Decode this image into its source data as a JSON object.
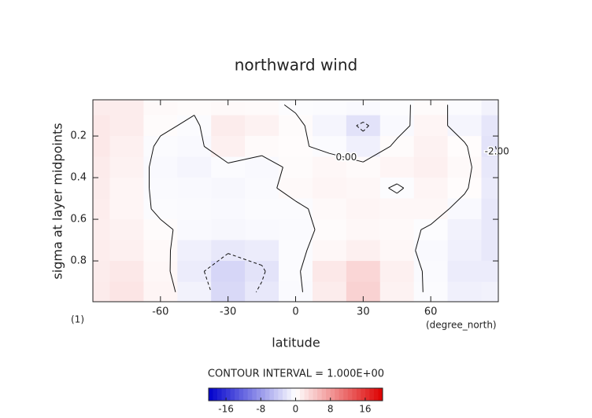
{
  "chart_data": {
    "type": "contour",
    "title": "northward wind",
    "x_label": "latitude",
    "y_label": "sigma at layer midpoints",
    "x_units": "(degree_north)",
    "panel_label": "(1)",
    "contour_note": "CONTOUR INTERVAL = 1.000E+00",
    "x": [
      -90,
      -75,
      -60,
      -45,
      -30,
      -15,
      0,
      15,
      30,
      45,
      60,
      75,
      90
    ],
    "y": [
      0.05,
      0.15,
      0.25,
      0.35,
      0.45,
      0.55,
      0.65,
      0.75,
      0.85,
      0.95
    ],
    "values": [
      [
        1.5,
        1.5,
        0.5,
        0.3,
        0.5,
        0.4,
        -0.2,
        -0.3,
        -0.5,
        -0.2,
        0.3,
        -0.3,
        -1.0
      ],
      [
        1.8,
        1.5,
        0.3,
        -0.3,
        1.5,
        1.0,
        0.3,
        -0.8,
        -2.3,
        -0.5,
        0.8,
        -0.8,
        -2.0
      ],
      [
        1.8,
        1.2,
        -0.3,
        -0.5,
        1.2,
        0.4,
        0.2,
        -0.3,
        -1.2,
        0.3,
        1.0,
        0.2,
        -2.2
      ],
      [
        1.6,
        1.0,
        -0.5,
        -0.8,
        -0.3,
        -0.5,
        0.3,
        0.6,
        0.4,
        0.8,
        1.2,
        0.5,
        -1.8
      ],
      [
        1.5,
        0.8,
        -0.4,
        -0.5,
        -0.6,
        -0.4,
        0.5,
        0.8,
        0.6,
        -0.2,
        0.8,
        0.2,
        -1.6
      ],
      [
        1.4,
        0.8,
        -0.3,
        -0.4,
        -0.5,
        -0.3,
        -0.3,
        0.5,
        0.8,
        0.6,
        0.6,
        -0.5,
        -1.8
      ],
      [
        1.3,
        1.0,
        0.3,
        -0.5,
        -0.6,
        -0.5,
        -0.4,
        0.3,
        0.6,
        0.5,
        -0.2,
        -1.0,
        -1.8
      ],
      [
        1.4,
        1.2,
        0.5,
        -1.2,
        -1.8,
        -1.5,
        -0.3,
        0.6,
        1.2,
        0.6,
        -0.5,
        -1.2,
        -1.8
      ],
      [
        1.5,
        1.8,
        0.6,
        -1.5,
        -3.2,
        -2.2,
        -0.3,
        1.8,
        3.2,
        1.2,
        -0.4,
        -1.5,
        -1.5
      ],
      [
        1.6,
        2.0,
        0.8,
        -1.0,
        -3.0,
        -1.8,
        -0.4,
        1.5,
        3.5,
        1.0,
        -0.3,
        -1.2,
        -1.0
      ]
    ],
    "xlim": [
      -90,
      90
    ],
    "xticks": [
      -60,
      -30,
      0,
      30,
      60
    ],
    "ylim": [
      0.996,
      0.026
    ],
    "yticks": [
      0.2,
      0.4,
      0.6,
      0.8
    ],
    "contour_levels": [
      {
        "value": 0,
        "label": "0.00"
      },
      {
        "value": -2,
        "label": "-2.00"
      }
    ],
    "colorbar": {
      "lim": [
        -20,
        20
      ],
      "ticks": [
        -16,
        -8,
        0,
        8,
        16
      ],
      "colors": [
        "#0000cc",
        "#ffffff",
        "#dd0000"
      ]
    }
  }
}
